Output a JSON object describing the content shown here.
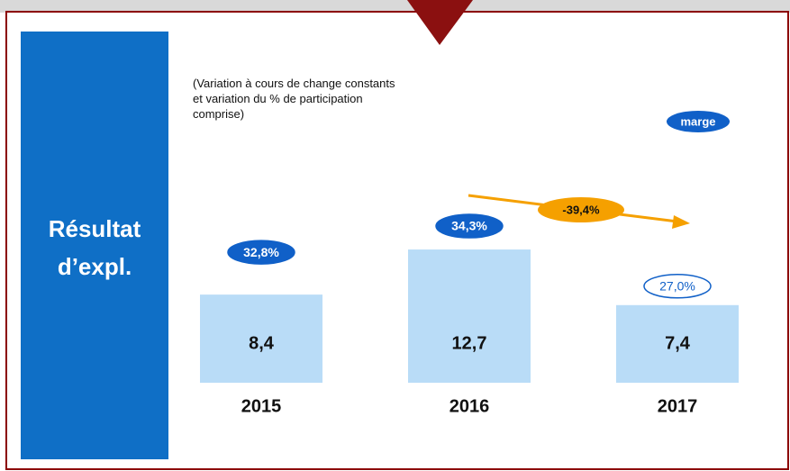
{
  "chart_data": {
    "type": "bar",
    "title": [
      "Résultat",
      "d’expl."
    ],
    "note": "(Variation à cours de change constants et variation du % de participation comprise)",
    "categories": [
      "2015",
      "2016",
      "2017"
    ],
    "values": [
      8.4,
      12.7,
      7.4
    ],
    "value_labels": [
      "8,4",
      "12,7",
      "7,4"
    ],
    "color": "#b9dcf7",
    "margins": {
      "name": "marge",
      "values": [
        32.8,
        34.3,
        27.0
      ],
      "value_labels": [
        "32,8%",
        "34,3%",
        "27,0%"
      ]
    },
    "change": {
      "value": -39.4,
      "label": "-39,4%"
    }
  }
}
